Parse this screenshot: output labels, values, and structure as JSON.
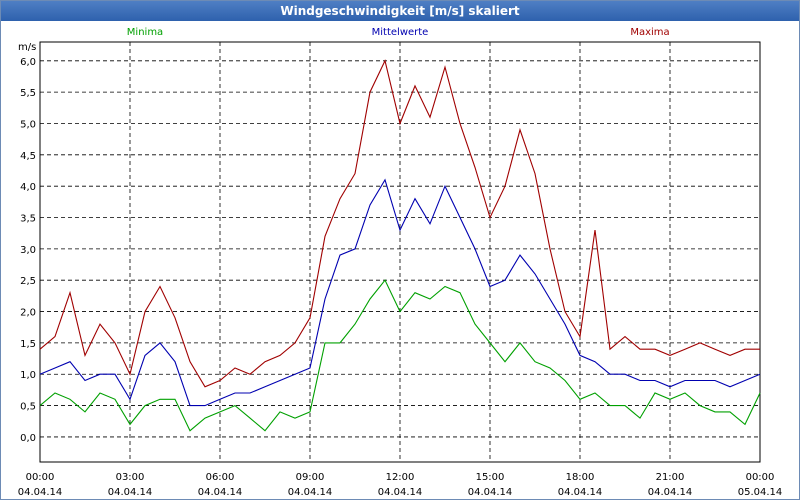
{
  "window": {
    "title": "Windgeschwindigkeit [m/s] skaliert"
  },
  "chart_data": {
    "type": "line",
    "title": "Windgeschwindigkeit [m/s] skaliert",
    "ylabel": "m/s",
    "ylim": [
      -0.4,
      6.3
    ],
    "yticks": [
      0.0,
      0.5,
      1.0,
      1.5,
      2.0,
      2.5,
      3.0,
      3.5,
      4.0,
      4.5,
      5.0,
      5.5,
      6.0
    ],
    "ytick_labels": [
      "0,0",
      "0,5",
      "1,0",
      "1,5",
      "2,0",
      "2,5",
      "3,0",
      "3,5",
      "4,0",
      "4,5",
      "5,0",
      "5,5",
      "6,0"
    ],
    "xlim": [
      0,
      24
    ],
    "xticks": [
      0,
      3,
      6,
      9,
      12,
      15,
      18,
      21,
      24
    ],
    "xtick_time_labels": [
      "00:00",
      "03:00",
      "06:00",
      "09:00",
      "12:00",
      "15:00",
      "18:00",
      "21:00",
      "00:00"
    ],
    "xtick_date_labels": [
      "04.04.14",
      "04.04.14",
      "04.04.14",
      "04.04.14",
      "04.04.14",
      "04.04.14",
      "04.04.14",
      "04.04.14",
      "05.04.14"
    ],
    "grid": true,
    "legend_position": "top",
    "x": [
      0,
      0.5,
      1,
      1.5,
      2,
      2.5,
      3,
      3.5,
      4,
      4.5,
      5,
      5.5,
      6,
      6.5,
      7,
      7.5,
      8,
      8.5,
      9,
      9.5,
      10,
      10.5,
      11,
      11.5,
      12,
      12.5,
      13,
      13.5,
      14,
      14.5,
      15,
      15.5,
      16,
      16.5,
      17,
      17.5,
      18,
      18.5,
      19,
      19.5,
      20,
      20.5,
      21,
      21.5,
      22,
      22.5,
      23,
      23.5,
      24
    ],
    "series": [
      {
        "name": "Minima",
        "color": "#00a000",
        "values": [
          0.5,
          0.7,
          0.6,
          0.4,
          0.7,
          0.6,
          0.2,
          0.5,
          0.6,
          0.6,
          0.1,
          0.3,
          0.4,
          0.5,
          0.3,
          0.1,
          0.4,
          0.3,
          0.4,
          1.5,
          1.5,
          1.8,
          2.2,
          2.5,
          2.0,
          2.3,
          2.2,
          2.4,
          2.3,
          1.8,
          1.5,
          1.2,
          1.5,
          1.2,
          1.1,
          0.9,
          0.6,
          0.7,
          0.5,
          0.5,
          0.3,
          0.7,
          0.6,
          0.7,
          0.5,
          0.4,
          0.4,
          0.2,
          0.7
        ]
      },
      {
        "name": "Mittelwerte",
        "color": "#0000b0",
        "values": [
          1.0,
          1.1,
          1.2,
          0.9,
          1.0,
          1.0,
          0.6,
          1.3,
          1.5,
          1.2,
          0.5,
          0.5,
          0.6,
          0.7,
          0.7,
          0.8,
          0.9,
          1.0,
          1.1,
          2.2,
          2.9,
          3.0,
          3.7,
          4.1,
          3.3,
          3.8,
          3.4,
          4.0,
          3.5,
          3.0,
          2.4,
          2.5,
          2.9,
          2.6,
          2.2,
          1.8,
          1.3,
          1.2,
          1.0,
          1.0,
          0.9,
          0.9,
          0.8,
          0.9,
          0.9,
          0.9,
          0.8,
          0.9,
          1.0
        ]
      },
      {
        "name": "Maxima",
        "color": "#a00000",
        "values": [
          1.4,
          1.6,
          2.3,
          1.3,
          1.8,
          1.5,
          1.0,
          2.0,
          2.4,
          1.9,
          1.2,
          0.8,
          0.9,
          1.1,
          1.0,
          1.2,
          1.3,
          1.5,
          1.9,
          3.2,
          3.8,
          4.2,
          5.5,
          6.0,
          5.0,
          5.6,
          5.1,
          5.9,
          5.0,
          4.3,
          3.5,
          4.0,
          4.9,
          4.2,
          3.0,
          2.0,
          1.6,
          3.3,
          1.4,
          1.6,
          1.4,
          1.4,
          1.3,
          1.4,
          1.5,
          1.4,
          1.3,
          1.4,
          1.4
        ]
      }
    ]
  }
}
